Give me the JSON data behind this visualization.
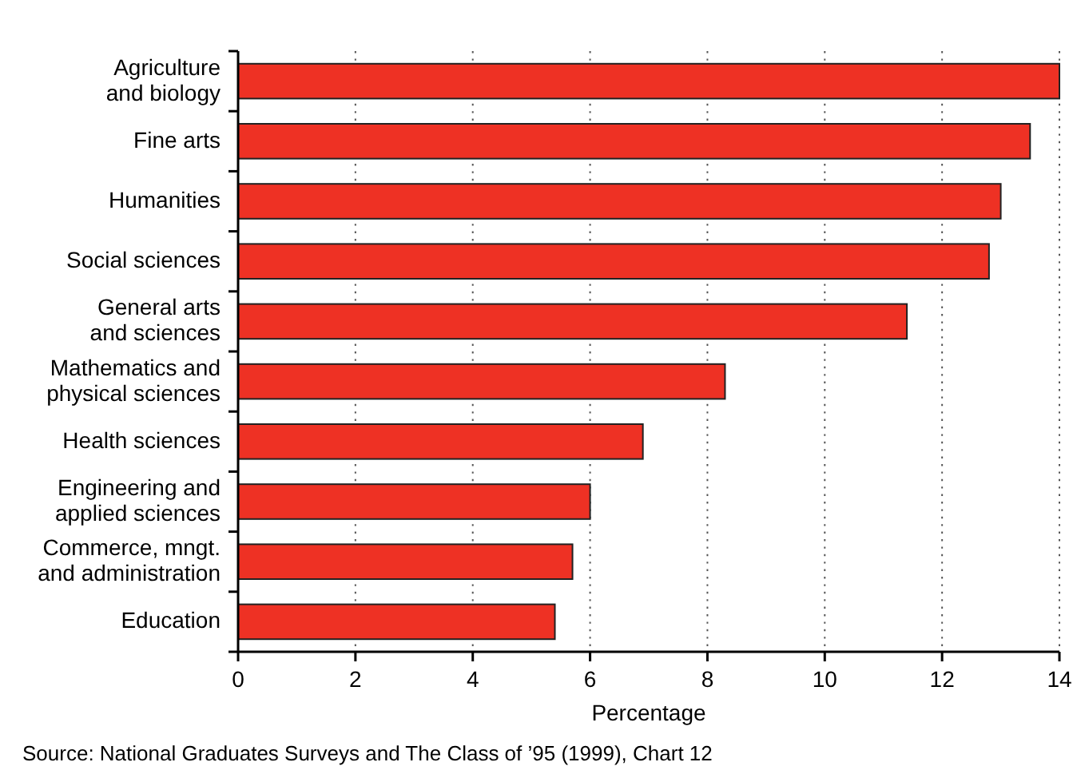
{
  "chart_data": {
    "type": "bar",
    "orientation": "horizontal",
    "xlabel": "Percentage",
    "categories": [
      "Agriculture\nand biology",
      "Fine arts",
      "Humanities",
      "Social sciences",
      "General arts\nand sciences",
      "Mathematics and\nphysical sciences",
      "Health sciences",
      "Engineering and\napplied sciences",
      "Commerce, mngt.\nand administration",
      "Education"
    ],
    "values": [
      14.0,
      13.5,
      13.0,
      12.8,
      11.4,
      8.3,
      6.9,
      6.0,
      5.7,
      5.4
    ],
    "color": "#ee3124",
    "xlim": [
      0,
      14
    ],
    "xticks": [
      0,
      2,
      4,
      6,
      8,
      10,
      12,
      14
    ],
    "grid": "x",
    "annotations": [
      "Source: National Graduates Surveys and The Class of ’95 (1999), Chart 12"
    ]
  }
}
